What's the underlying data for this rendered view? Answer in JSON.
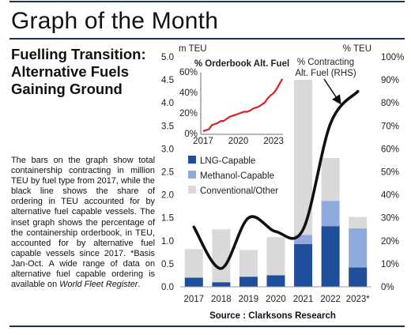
{
  "page": {
    "title": "Graph of the Month",
    "subtitle": "Fuelling Transition: Alternative Fuels Gaining Ground",
    "body_part1": "The bars on the graph show total containership contracting in million TEU by fuel type from 2017, while the black line shows the share of ordering in TEU accounted for by alternative fuel capable vessels. The inset graph shows the percentage of the containership orderbook, in TEU, accounted for by alternative fuel capable vessels since 2017. *Basis Jan-Oct. A wide range of data on alternative fuel capable ordering is available on ",
    "body_italic": "World Fleet Register",
    "body_part2": ".",
    "source": "Source : Clarksons Research"
  },
  "colors": {
    "lng": "#1f4e9c",
    "methanol": "#8faadc",
    "conventional": "#d9d9d9",
    "line": "#111111",
    "inset_line": "#e02020",
    "frame": "#1f2f57"
  },
  "chart_data": [
    {
      "type": "bar",
      "stacked": true,
      "categories": [
        "2017",
        "2018",
        "2019",
        "2020",
        "2021",
        "2022",
        "2023*"
      ],
      "left_axis_label": "m TEU",
      "right_axis_label": "% TEU",
      "ylim": [
        0,
        5.0
      ],
      "yticks": [
        "0.0",
        "0.5",
        "1.0",
        "1.5",
        "2.0",
        "2.5",
        "3.0",
        "3.5",
        "4.0",
        "4.5",
        "5.0"
      ],
      "y2lim": [
        0,
        100
      ],
      "y2ticks": [
        "0%",
        "10%",
        "20%",
        "30%",
        "40%",
        "50%",
        "60%",
        "70%",
        "80%",
        "90%",
        "100%"
      ],
      "series": [
        {
          "name": "LNG-Capable",
          "values": [
            0.2,
            0.1,
            0.22,
            0.25,
            0.93,
            1.32,
            0.42
          ]
        },
        {
          "name": "Methanol-Capable",
          "values": [
            0.0,
            0.0,
            0.0,
            0.0,
            0.2,
            0.55,
            0.85
          ]
        },
        {
          "name": "Conventional/Other",
          "values": [
            0.62,
            1.15,
            0.58,
            0.83,
            3.37,
            0.93,
            0.25
          ]
        }
      ],
      "line_series": {
        "name": "% Contracting Alt. Fuel (RHS)",
        "axis": "right",
        "values": [
          26,
          8,
          30,
          24,
          25,
          71,
          85
        ]
      },
      "legend_position": "center-left"
    },
    {
      "type": "line",
      "title": "% Orderbook Alt. Fuel",
      "xticks": [
        "2017",
        "2020",
        "2023"
      ],
      "yticks": [
        "0%",
        "20%",
        "40%",
        "60%"
      ],
      "ylim": [
        0,
        60
      ],
      "x": [
        2017.0,
        2017.25,
        2017.5,
        2017.75,
        2018.0,
        2018.25,
        2018.5,
        2018.75,
        2019.0,
        2019.25,
        2019.5,
        2019.75,
        2020.0,
        2020.25,
        2020.5,
        2020.75,
        2021.0,
        2021.25,
        2021.5,
        2021.75,
        2022.0,
        2022.25,
        2022.5,
        2022.75,
        2023.0,
        2023.25,
        2023.5,
        2023.75
      ],
      "values": [
        3,
        4,
        5,
        9,
        10,
        11,
        13,
        13,
        15,
        17,
        18,
        19,
        20,
        21,
        22,
        22,
        23,
        25,
        26,
        27,
        29,
        31,
        35,
        38,
        40,
        44,
        49,
        54
      ]
    }
  ]
}
